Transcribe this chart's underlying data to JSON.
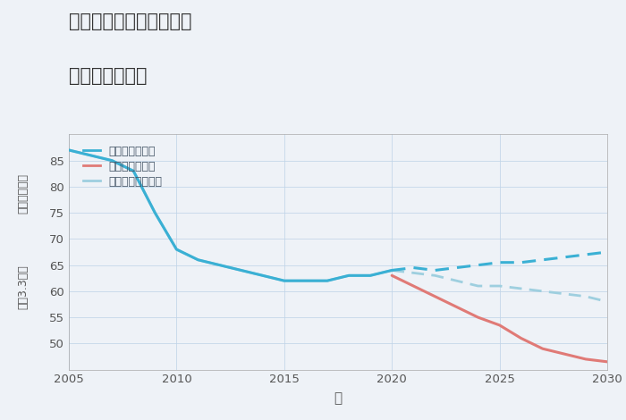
{
  "title_line1": "奈良県奈良市鶴舞西町の",
  "title_line2": "土地の価格推移",
  "xlabel": "年",
  "ylabel_top": "単価（万円）",
  "ylabel_bottom": "坪（3.3㎡）",
  "background_color": "#eef2f7",
  "plot_bg_color": "#eef2f7",
  "xlim": [
    2005,
    2030
  ],
  "ylim": [
    45,
    90
  ],
  "yticks": [
    50,
    55,
    60,
    65,
    70,
    75,
    80,
    85
  ],
  "xticks": [
    2005,
    2010,
    2015,
    2020,
    2025,
    2030
  ],
  "good_scenario": {
    "label": "グッドシナリオ",
    "color": "#3ab0d4",
    "linewidth": 2.2,
    "years_solid": [
      2005,
      2006,
      2007,
      2008,
      2009,
      2010,
      2011,
      2012,
      2013,
      2014,
      2015,
      2016,
      2017,
      2018,
      2019,
      2020
    ],
    "values_solid": [
      87,
      86,
      85,
      83,
      75,
      68,
      66,
      65,
      64,
      63,
      62,
      62,
      62,
      63,
      63,
      64
    ],
    "years_dash": [
      2020,
      2021,
      2022,
      2023,
      2024,
      2025,
      2026,
      2027,
      2028,
      2029,
      2030
    ],
    "values_dash": [
      64,
      64.5,
      64,
      64.5,
      65,
      65.5,
      65.5,
      66,
      66.5,
      67,
      67.5
    ]
  },
  "bad_scenario": {
    "label": "バッドシナリオ",
    "color": "#e07a76",
    "linewidth": 2.2,
    "years": [
      2020,
      2021,
      2022,
      2023,
      2024,
      2025,
      2026,
      2027,
      2028,
      2029,
      2030
    ],
    "values": [
      63,
      61,
      59,
      57,
      55,
      53.5,
      51,
      49,
      48,
      47,
      46.5
    ]
  },
  "normal_scenario": {
    "label": "ノーマルシナリオ",
    "color": "#9ecfdf",
    "linewidth": 2.0,
    "years_solid": [
      2005,
      2006,
      2007,
      2008,
      2009,
      2010,
      2011,
      2012,
      2013,
      2014,
      2015,
      2016,
      2017,
      2018,
      2019,
      2020
    ],
    "values_solid": [
      87,
      86,
      85,
      83,
      75,
      68,
      66,
      65,
      64,
      63,
      62,
      62,
      62,
      63,
      63,
      64
    ],
    "years_dash": [
      2020,
      2021,
      2022,
      2023,
      2024,
      2025,
      2026,
      2027,
      2028,
      2029,
      2030
    ],
    "values_dash": [
      64,
      63.5,
      63,
      62,
      61,
      61,
      60.5,
      60,
      59.5,
      59,
      58
    ]
  }
}
